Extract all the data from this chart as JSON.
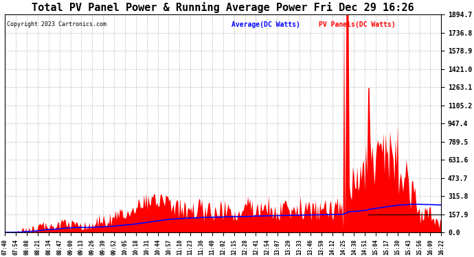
{
  "title": "Total PV Panel Power & Running Average Power Fri Dec 29 16:26",
  "copyright": "Copyright 2023 Cartronics.com",
  "legend_average": "Average(DC Watts)",
  "legend_pv": "PV Panels(DC Watts)",
  "legend_average_color": "blue",
  "legend_pv_color": "red",
  "background_color": "#ffffff",
  "plot_background": "#ffffff",
  "grid_color": "#bbbbbb",
  "title_fontsize": 11,
  "ytick_labels": [
    "0.0",
    "157.9",
    "315.8",
    "473.7",
    "631.6",
    "789.5",
    "947.4",
    "1105.2",
    "1263.1",
    "1421.0",
    "1578.9",
    "1736.8",
    "1894.7"
  ],
  "ytick_values": [
    0.0,
    157.9,
    315.8,
    473.7,
    631.6,
    789.5,
    947.4,
    1105.2,
    1263.1,
    1421.0,
    1578.9,
    1736.8,
    1894.7
  ],
  "ylim": [
    0.0,
    1894.7
  ],
  "x_labels": [
    "07:40",
    "07:54",
    "08:08",
    "08:21",
    "08:34",
    "08:47",
    "09:00",
    "09:13",
    "09:26",
    "09:39",
    "09:52",
    "10:05",
    "10:18",
    "10:31",
    "10:44",
    "10:57",
    "11:10",
    "11:23",
    "11:36",
    "11:49",
    "12:02",
    "12:15",
    "12:28",
    "12:41",
    "12:54",
    "13:07",
    "13:20",
    "13:33",
    "13:46",
    "13:59",
    "14:12",
    "14:25",
    "14:38",
    "14:51",
    "15:04",
    "15:17",
    "15:30",
    "15:43",
    "15:56",
    "16:09",
    "16:22"
  ]
}
